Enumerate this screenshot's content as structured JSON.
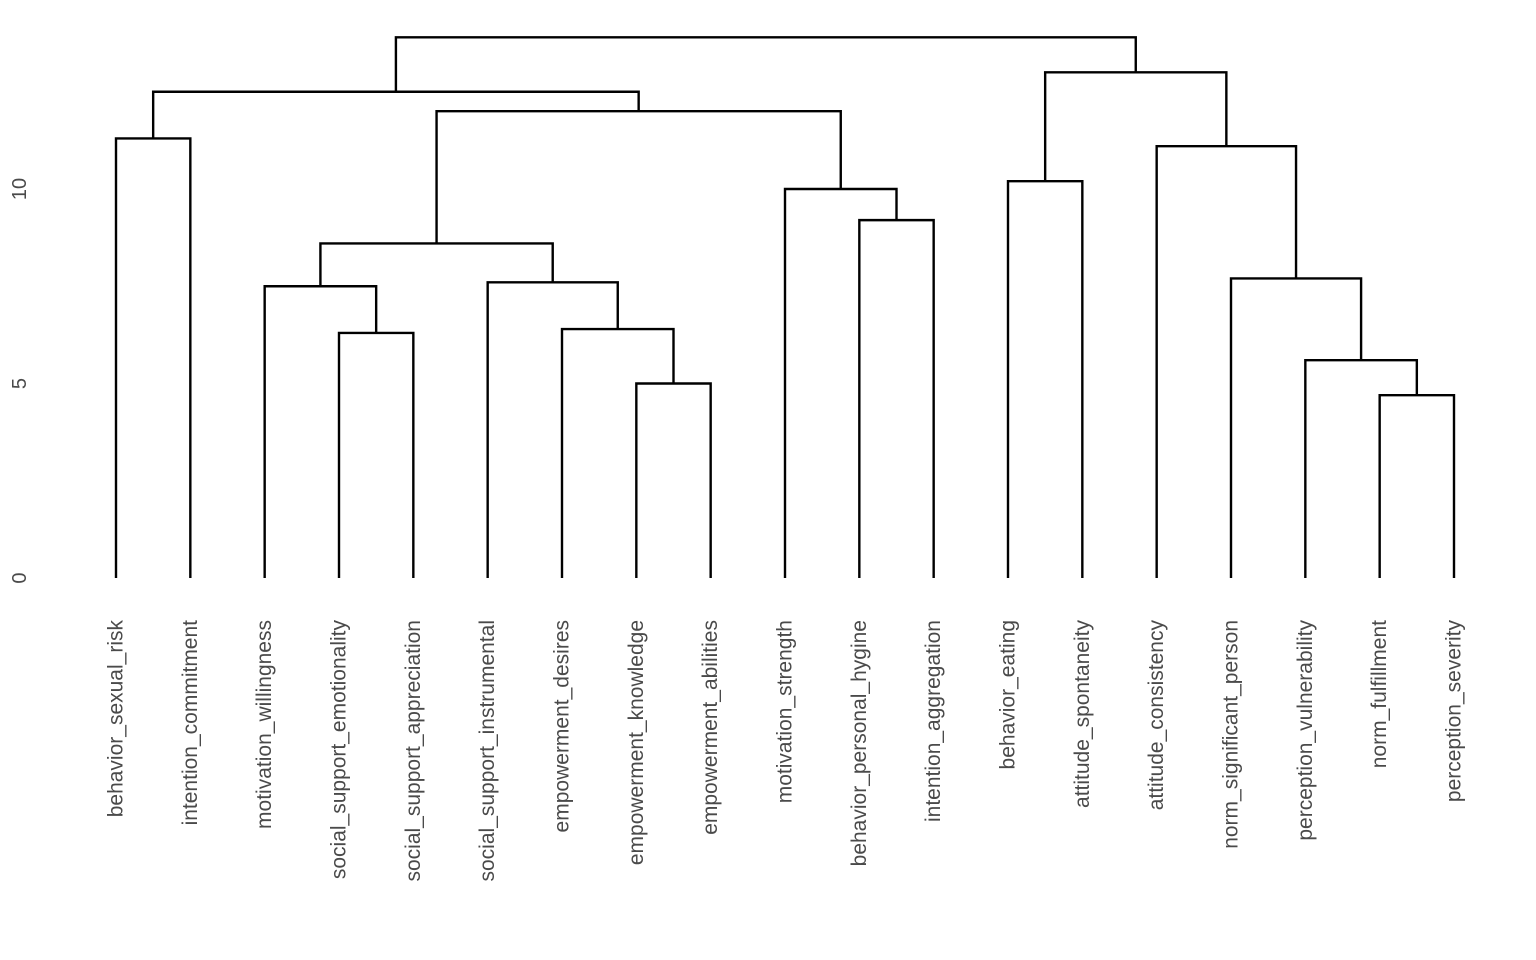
{
  "chart_data": {
    "type": "dendrogram",
    "title": "",
    "xlabel": "",
    "ylabel": "",
    "ylim": [
      0,
      14.3
    ],
    "y_ticks": [
      "0",
      "5",
      "10"
    ],
    "y_tick_values": [
      0,
      5,
      10
    ],
    "grid": false,
    "leaves": [
      "behavior_sexual_risk",
      "intention_commitment",
      "motivation_willingness",
      "social_support_emotionality",
      "social_support_appreciation",
      "social_support_instrumental",
      "empowerment_desires",
      "empowerment_knowledge",
      "empowerment_abilities",
      "motivation_strength",
      "behavior_personal_hygine",
      "intention_aggregation",
      "behavior_eating",
      "attitude_spontaneity",
      "attitude_consistency",
      "norm_significant_person",
      "perception_vulnerability",
      "norm_fulfillment",
      "perception_severity"
    ],
    "merges": [
      {
        "left": "L0",
        "right": "L1",
        "height": 11.3
      },
      {
        "left": "L3",
        "right": "L4",
        "height": 6.3
      },
      {
        "left": "L2",
        "right": "N1",
        "height": 7.5
      },
      {
        "left": "L7",
        "right": "L8",
        "height": 5.0
      },
      {
        "left": "L6",
        "right": "N3",
        "height": 6.4
      },
      {
        "left": "L5",
        "right": "N4",
        "height": 7.6
      },
      {
        "left": "N2",
        "right": "N5",
        "height": 8.6
      },
      {
        "left": "L10",
        "right": "L11",
        "height": 9.2
      },
      {
        "left": "L9",
        "right": "N7",
        "height": 10.0
      },
      {
        "left": "N6",
        "right": "N8",
        "height": 12.0
      },
      {
        "left": "N0",
        "right": "N9",
        "height": 12.5
      },
      {
        "left": "L12",
        "right": "L13",
        "height": 10.2
      },
      {
        "left": "L17",
        "right": "L18",
        "height": 4.7
      },
      {
        "left": "L16",
        "right": "N12",
        "height": 5.6
      },
      {
        "left": "L15",
        "right": "N13",
        "height": 7.7
      },
      {
        "left": "L14",
        "right": "N14",
        "height": 11.1
      },
      {
        "left": "N11",
        "right": "N15",
        "height": 13.0
      },
      {
        "left": "N10",
        "right": "N16",
        "height": 13.9
      }
    ]
  }
}
